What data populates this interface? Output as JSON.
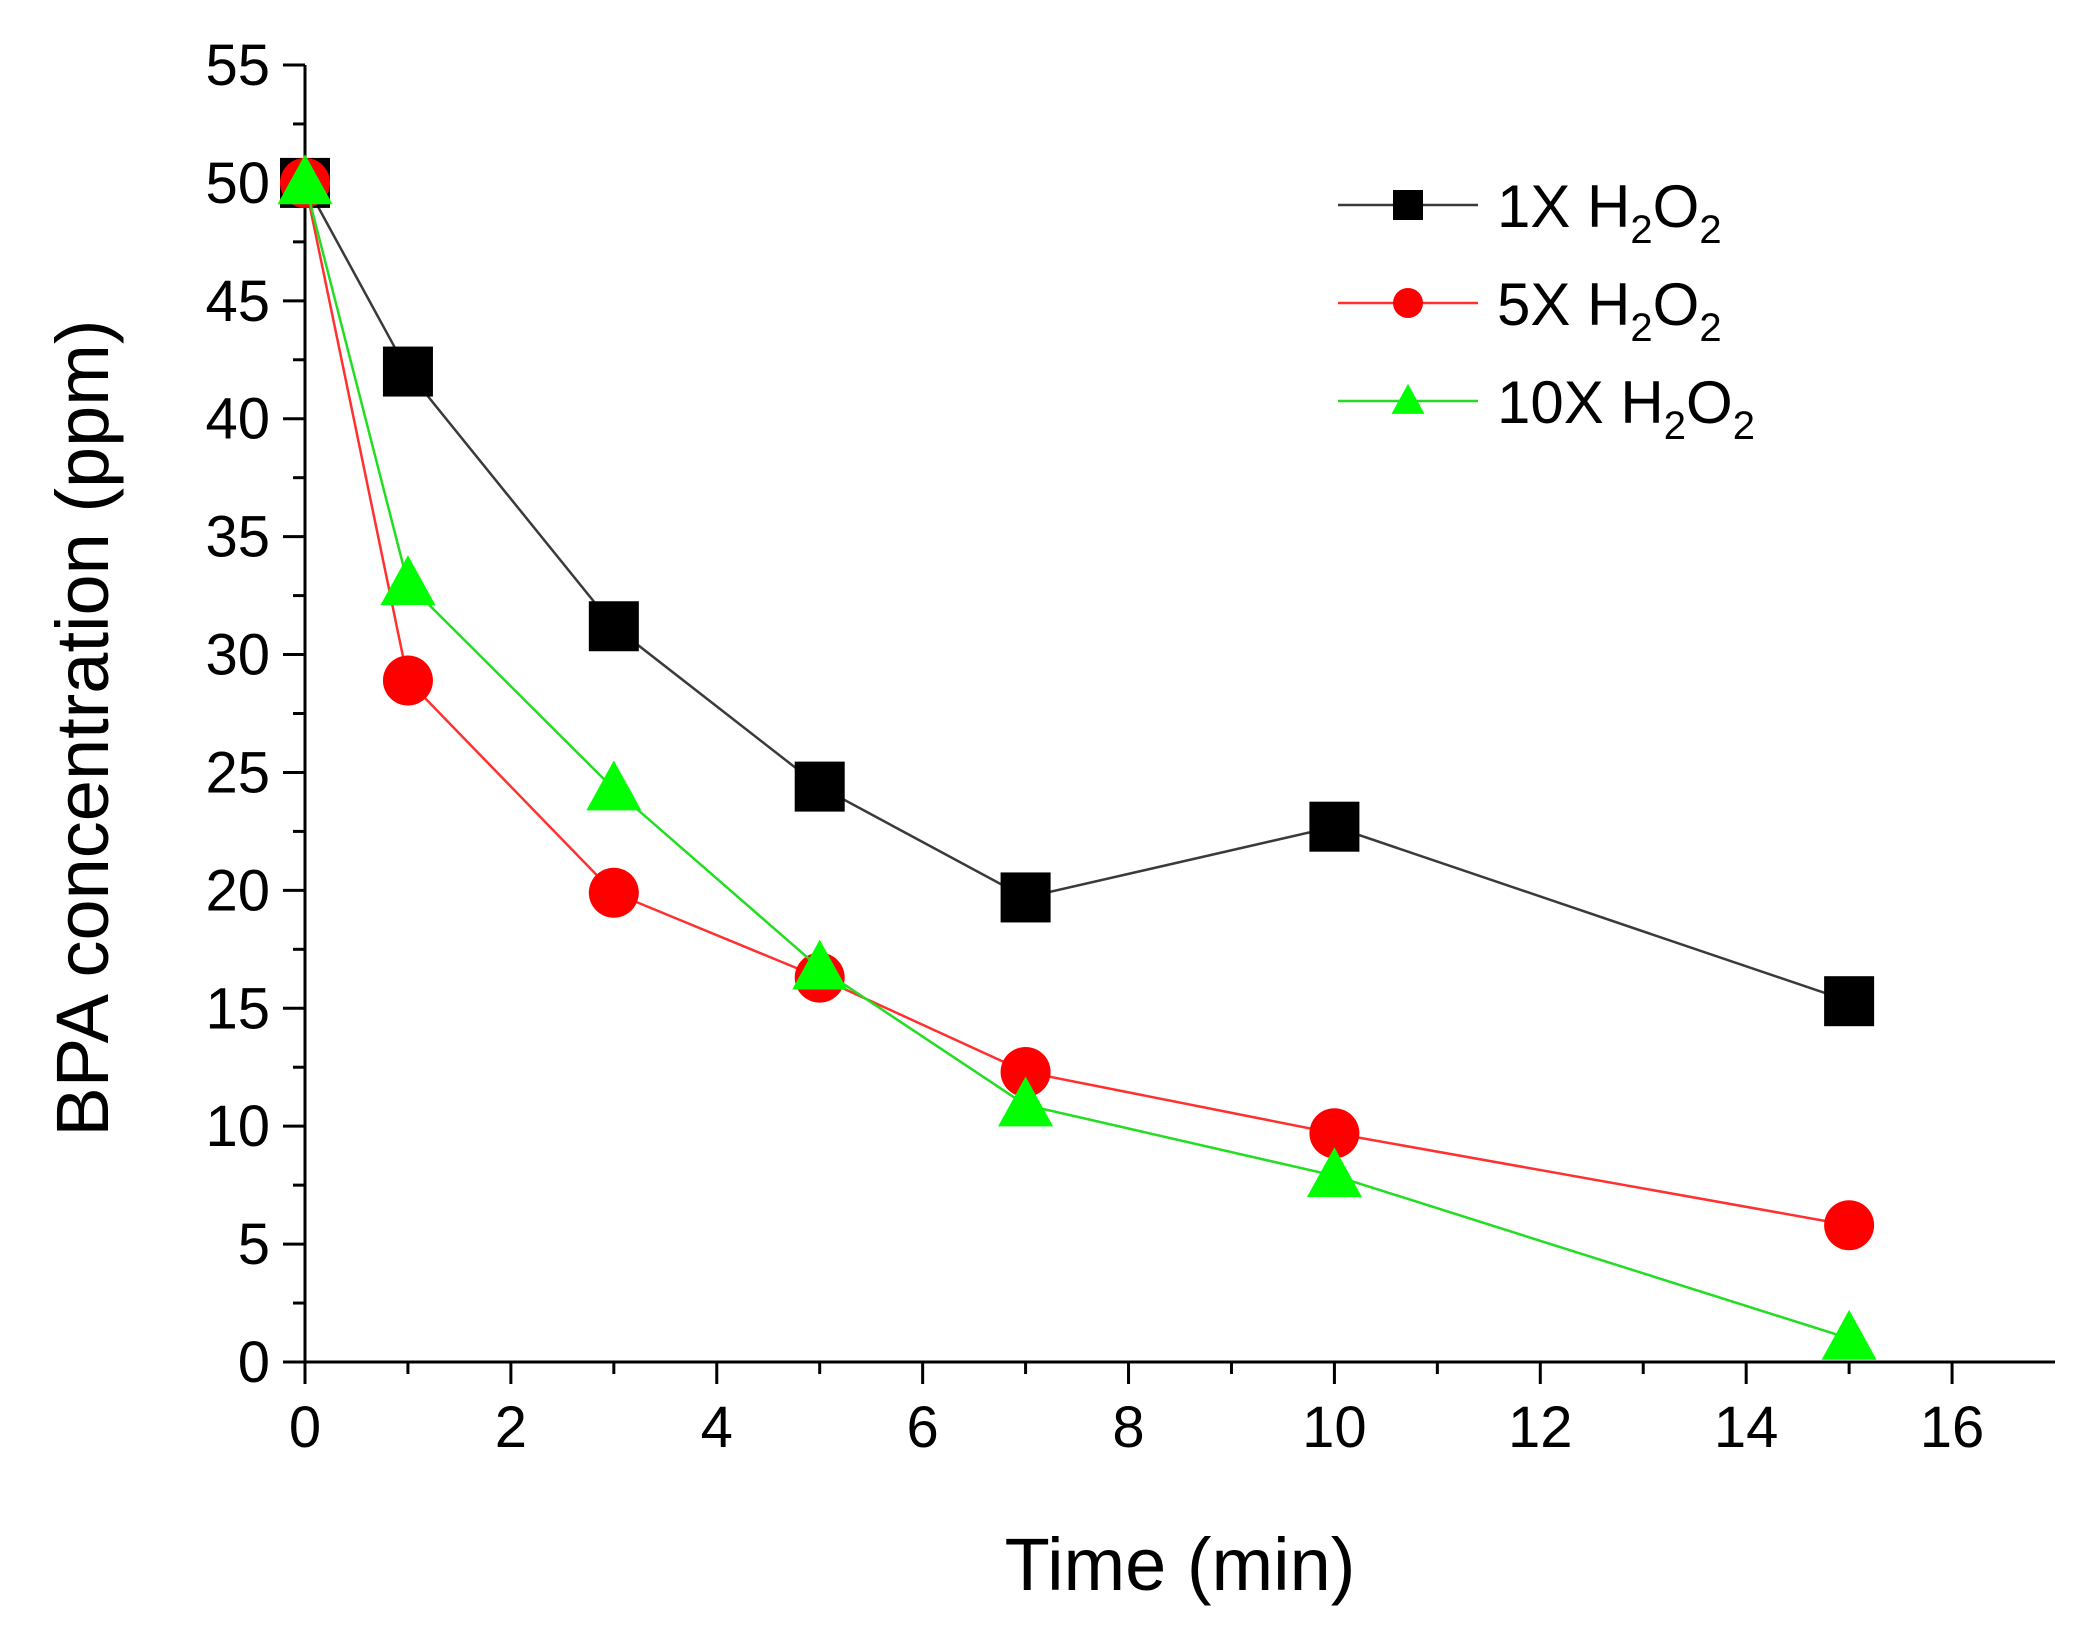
{
  "chart_data": {
    "type": "line",
    "title": "",
    "xlabel": "Time (min)",
    "ylabel": "BPA concentration (ppm)",
    "xlim": [
      0,
      17
    ],
    "ylim": [
      0,
      55
    ],
    "xticks": [
      0,
      2,
      4,
      6,
      8,
      10,
      12,
      14,
      16
    ],
    "yticks": [
      0,
      5,
      10,
      15,
      20,
      25,
      30,
      35,
      40,
      45,
      50,
      55
    ],
    "legend_position": "top-right",
    "series": [
      {
        "name": "1X H2O2",
        "label_prefix": "1X H",
        "sub1": "2",
        "mid": "O",
        "sub2": "2",
        "color": "#000000",
        "line_color": "#3a3a3a",
        "marker": "square",
        "x": [
          0,
          1,
          3,
          5,
          7,
          10,
          15
        ],
        "y": [
          50,
          42,
          31.2,
          24.4,
          19.7,
          22.7,
          15.3
        ]
      },
      {
        "name": "5X H2O2",
        "label_prefix": "5X H",
        "sub1": "2",
        "mid": "O",
        "sub2": "2",
        "color": "#ff0000",
        "line_color": "#ff3030",
        "marker": "circle",
        "x": [
          0,
          1,
          3,
          5,
          7,
          10,
          15
        ],
        "y": [
          50,
          28.9,
          19.9,
          16.3,
          12.3,
          9.7,
          5.8
        ]
      },
      {
        "name": "10X H2O2",
        "label_prefix": "10X H",
        "sub1": "2",
        "mid": "O",
        "sub2": "2",
        "color": "#00ff00",
        "line_color": "#22dd22",
        "marker": "triangle",
        "x": [
          0,
          1,
          3,
          5,
          7,
          10,
          15
        ],
        "y": [
          50,
          33,
          24.3,
          16.7,
          10.9,
          7.9,
          1
        ]
      }
    ]
  }
}
